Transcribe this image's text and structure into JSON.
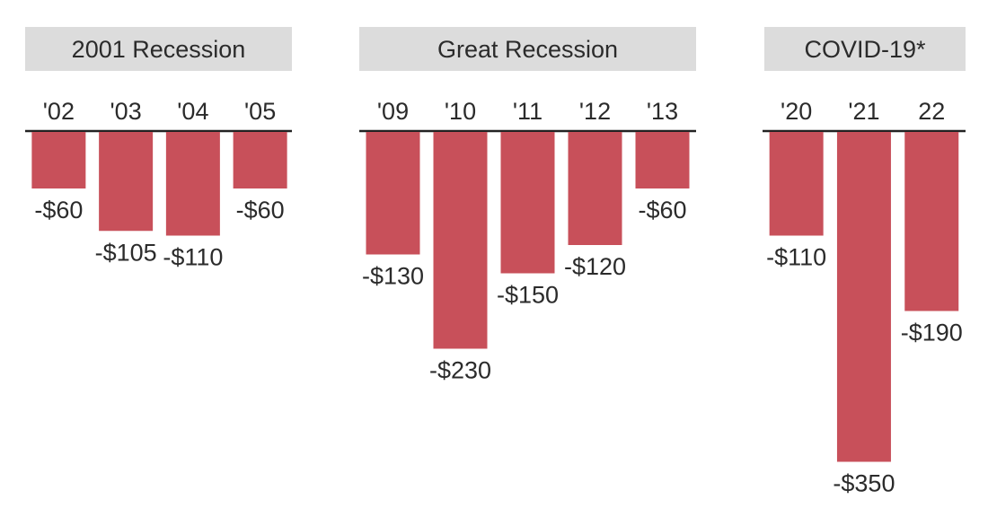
{
  "chart_data": [
    {
      "type": "bar",
      "title": "2001 Recession",
      "categories": [
        "'02",
        "'03",
        "'04",
        "'05"
      ],
      "values": [
        -60,
        -105,
        -110,
        -60
      ],
      "value_labels": [
        "-$60",
        "-$105",
        "-$110",
        "-$60"
      ]
    },
    {
      "type": "bar",
      "title": "Great Recession",
      "categories": [
        "'09",
        "'10",
        "'11",
        "'12",
        "'13"
      ],
      "values": [
        -130,
        -230,
        -150,
        -120,
        -60
      ],
      "value_labels": [
        "-$130",
        "-$230",
        "-$150",
        "-$120",
        "-$60"
      ]
    },
    {
      "type": "bar",
      "title": "COVID-19*",
      "categories": [
        "'20",
        "'21",
        "22"
      ],
      "values": [
        -110,
        -350,
        -190
      ],
      "value_labels": [
        "-$110",
        "-$350",
        "-$190"
      ]
    }
  ],
  "colors": {
    "bar": "#c8505a",
    "panel_header_bg": "#dcdcdc",
    "baseline": "#222222",
    "text": "#2b2b2b"
  }
}
